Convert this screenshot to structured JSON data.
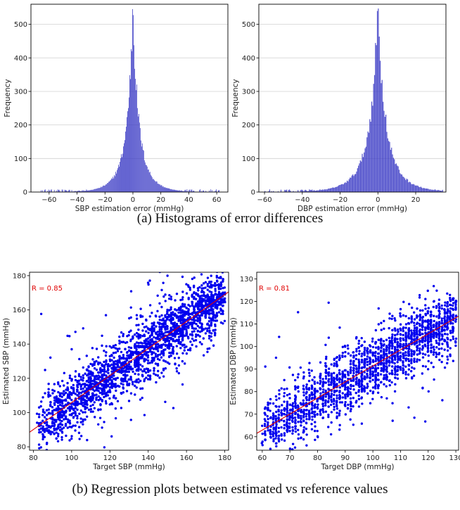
{
  "captions": {
    "a": "(a) Histograms of error differences",
    "b": "(b) Regression plots between estimated vs reference values"
  },
  "chart_data": [
    {
      "type": "bar",
      "subtype": "histogram",
      "xlabel": "SBP estimation error (mmHg)",
      "ylabel": "Frequency",
      "xlim": [
        -73,
        68
      ],
      "ylim": [
        0,
        560
      ],
      "xticks": [
        -60,
        -40,
        -20,
        0,
        20,
        40,
        60
      ],
      "yticks": [
        0,
        100,
        200,
        300,
        400,
        500
      ],
      "grid": "horizontal",
      "color": "#3a3ac4",
      "bin_width": 0.5,
      "distribution": "laplace-like, centered at 0",
      "peak_x": 0,
      "peak_frequency": 543,
      "x_range_of_data": [
        -66,
        62
      ]
    },
    {
      "type": "bar",
      "subtype": "histogram",
      "xlabel": "DBP estimation error (mmHg)",
      "ylabel": "Frequency",
      "xlim": [
        -63,
        36
      ],
      "ylim": [
        0,
        560
      ],
      "xticks": [
        -60,
        -40,
        -20,
        0,
        20
      ],
      "yticks": [
        0,
        100,
        200,
        300,
        400,
        500
      ],
      "grid": "horizontal",
      "color": "#3a3ac4",
      "bin_width": 0.5,
      "distribution": "laplace-like, centered at 0",
      "peak_x": 0,
      "peak_frequency": 538,
      "x_range_of_data": [
        -60,
        34
      ]
    },
    {
      "type": "scatter",
      "xlabel": "Target SBP (mmHg)",
      "ylabel": "Estimated SBP (mmHg)",
      "xlim": [
        78,
        182
      ],
      "ylim": [
        78,
        182
      ],
      "xticks": [
        80,
        100,
        120,
        140,
        160,
        180
      ],
      "yticks": [
        80,
        100,
        120,
        140,
        160,
        180
      ],
      "grid": "none",
      "point_color": "#0000ee",
      "annotation": "R = 0.85",
      "annotation_position": "top-left",
      "regression_line": {
        "color": "#e00000",
        "x": [
          78,
          182
        ],
        "y": [
          88.5,
          170.5
        ]
      },
      "x_range_of_data": [
        82,
        180
      ]
    },
    {
      "type": "scatter",
      "xlabel": "Target DBP (mmHg)",
      "ylabel": "Estimated DBP (mmHg)",
      "xlim": [
        58,
        131
      ],
      "ylim": [
        54,
        133
      ],
      "xticks": [
        60,
        70,
        80,
        90,
        100,
        110,
        120,
        130
      ],
      "yticks": [
        60,
        70,
        80,
        90,
        100,
        110,
        120,
        130
      ],
      "grid": "none",
      "point_color": "#0000ee",
      "annotation": "R = 0.81",
      "annotation_position": "top-left",
      "regression_line": {
        "color": "#e00000",
        "x": [
          58,
          131
        ],
        "y": [
          61.5,
          113.5
        ]
      },
      "x_range_of_data": [
        60,
        130
      ]
    }
  ]
}
